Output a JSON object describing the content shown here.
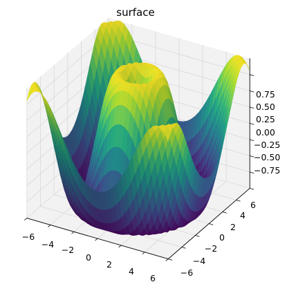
{
  "chart_data": {
    "type": "surface",
    "title": "surface",
    "function": "z = sin(sqrt(x^2 + y^2))",
    "x_range": [
      -6,
      6
    ],
    "y_range": [
      -6,
      6
    ],
    "z_range": [
      -1,
      1
    ],
    "x_ticks": [
      "−6",
      "−4",
      "−2",
      "0",
      "2",
      "4",
      "6"
    ],
    "y_ticks": [
      "−6",
      "−4",
      "−2",
      "0",
      "2",
      "4",
      "6"
    ],
    "z_ticks": [
      "−0.75",
      "−0.50",
      "−0.25",
      "0.00",
      "0.25",
      "0.50",
      "0.75"
    ],
    "grid": true,
    "colormap": "viridis",
    "pane_color": "#f2f2f2",
    "grid_color": "#d8d8d8"
  }
}
